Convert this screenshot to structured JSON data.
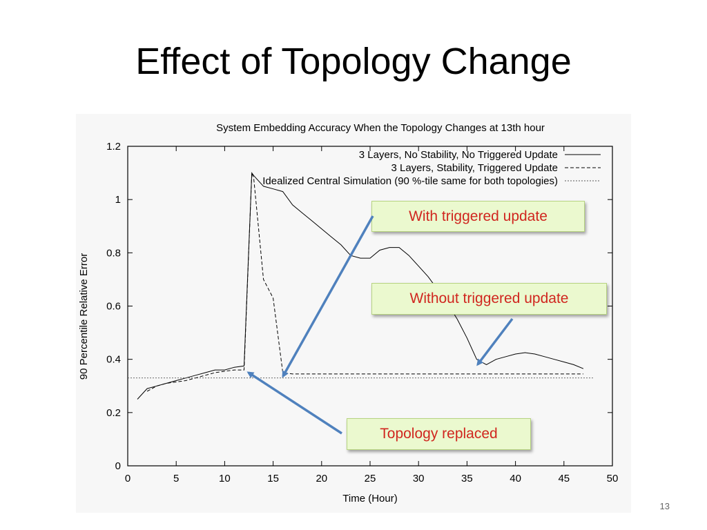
{
  "slide": {
    "title": "Effect of Topology Change",
    "page_number": "13"
  },
  "callouts": {
    "triggered": "With triggered update",
    "untriggered": "Without triggered update",
    "topology": "Topology replaced"
  },
  "colors": {
    "callout_fill": "#ebf9cf",
    "callout_text": "#d0261f",
    "arrow": "#4f81bd"
  },
  "chart_data": {
    "type": "line",
    "title": "System Embedding Accuracy When the Topology Changes at 13th hour",
    "xlabel": "Time (Hour)",
    "ylabel": "90 Percentile Relative Error",
    "xlim": [
      0,
      50
    ],
    "ylim": [
      0,
      1.2
    ],
    "xticks": [
      0,
      5,
      10,
      15,
      20,
      25,
      30,
      35,
      40,
      45,
      50
    ],
    "yticks": [
      0,
      0.2,
      0.4,
      0.6,
      0.8,
      1,
      1.2
    ],
    "legend_position": "top-right",
    "grid": false,
    "series": [
      {
        "name": "3 Layers, No Stability, No Triggered Update",
        "style": "solid",
        "x": [
          1,
          2,
          3,
          4,
          5,
          6,
          7,
          8,
          9,
          10,
          11,
          12,
          12.8,
          13,
          14,
          15,
          16,
          17,
          18,
          19,
          20,
          21,
          22,
          23,
          24,
          25,
          26,
          27,
          28,
          29,
          30,
          31,
          32,
          33,
          34,
          35,
          36,
          37,
          38,
          39,
          40,
          41,
          42,
          43,
          44,
          45,
          46,
          47
        ],
        "y": [
          0.25,
          0.29,
          0.3,
          0.31,
          0.32,
          0.33,
          0.34,
          0.35,
          0.36,
          0.36,
          0.37,
          0.375,
          1.1,
          1.09,
          1.05,
          1.04,
          1.03,
          0.98,
          0.95,
          0.92,
          0.89,
          0.86,
          0.83,
          0.79,
          0.78,
          0.78,
          0.81,
          0.82,
          0.82,
          0.79,
          0.75,
          0.71,
          0.66,
          0.61,
          0.55,
          0.48,
          0.4,
          0.38,
          0.4,
          0.41,
          0.42,
          0.425,
          0.42,
          0.41,
          0.4,
          0.39,
          0.38,
          0.365
        ]
      },
      {
        "name": "3 Layers, Stability, Triggered Update",
        "style": "dashed",
        "x": [
          2,
          3,
          4,
          5,
          6,
          7,
          8,
          9,
          10,
          11,
          12,
          12.8,
          13,
          14,
          15,
          16,
          17,
          18,
          20,
          25,
          30,
          35,
          40,
          45,
          47
        ],
        "y": [
          0.28,
          0.3,
          0.31,
          0.315,
          0.32,
          0.33,
          0.34,
          0.35,
          0.355,
          0.36,
          0.36,
          1.1,
          1.08,
          0.7,
          0.63,
          0.35,
          0.345,
          0.345,
          0.345,
          0.345,
          0.345,
          0.345,
          0.345,
          0.345,
          0.345
        ]
      },
      {
        "name": "Idealized Central Simulation (90 %-tile same for both topologies)",
        "style": "dotted",
        "x": [
          0,
          48
        ],
        "y": [
          0.33,
          0.33
        ]
      }
    ]
  }
}
